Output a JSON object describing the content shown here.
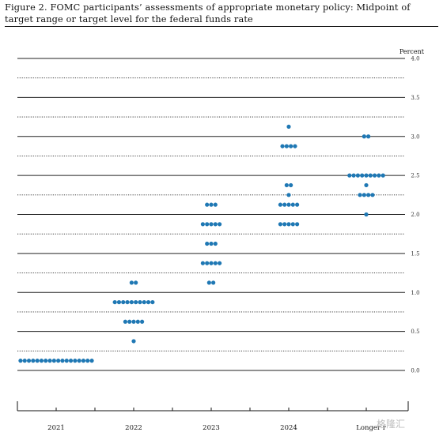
{
  "figure": {
    "title": "Figure 2.  FOMC participants’ assessments of appropriate monetary policy:  Midpoint of target range or target level for the federal funds rate"
  },
  "watermark": {
    "text": "格隆汇"
  },
  "chart_data": {
    "type": "scatter",
    "title": "",
    "ylabel": "Percent",
    "ylim": [
      0,
      4.0
    ],
    "y_ticks": [
      "0.0",
      "0.5",
      "1.0",
      "1.5",
      "2.0",
      "2.5",
      "3.0",
      "3.5",
      "4.0"
    ],
    "categories": [
      "2021",
      "2022",
      "2023",
      "2024",
      "Longer run"
    ],
    "category_labels": [
      "2021",
      "2022",
      "2023",
      "2024",
      "Longer r"
    ],
    "dot_color": "#1f78b4",
    "dots": [
      {
        "x": "2021",
        "y": 0.125,
        "count": 18
      },
      {
        "x": "2022",
        "y": 1.125,
        "count": 2
      },
      {
        "x": "2022",
        "y": 0.875,
        "count": 10
      },
      {
        "x": "2022",
        "y": 0.625,
        "count": 5
      },
      {
        "x": "2022",
        "y": 0.375,
        "count": 1
      },
      {
        "x": "2023",
        "y": 2.125,
        "count": 3
      },
      {
        "x": "2023",
        "y": 1.875,
        "count": 5
      },
      {
        "x": "2023",
        "y": 1.625,
        "count": 3
      },
      {
        "x": "2023",
        "y": 1.375,
        "count": 5
      },
      {
        "x": "2023",
        "y": 1.125,
        "count": 2
      },
      {
        "x": "2024",
        "y": 3.125,
        "count": 1
      },
      {
        "x": "2024",
        "y": 2.875,
        "count": 4
      },
      {
        "x": "2024",
        "y": 2.375,
        "count": 2
      },
      {
        "x": "2024",
        "y": 2.25,
        "count": 1
      },
      {
        "x": "2024",
        "y": 2.125,
        "count": 5
      },
      {
        "x": "2024",
        "y": 1.875,
        "count": 5
      },
      {
        "x": "Longer run",
        "y": 3.0,
        "count": 2
      },
      {
        "x": "Longer run",
        "y": 2.5,
        "count": 9
      },
      {
        "x": "Longer run",
        "y": 2.375,
        "count": 1
      },
      {
        "x": "Longer run",
        "y": 2.25,
        "count": 4
      },
      {
        "x": "Longer run",
        "y": 2.0,
        "count": 1
      }
    ]
  }
}
